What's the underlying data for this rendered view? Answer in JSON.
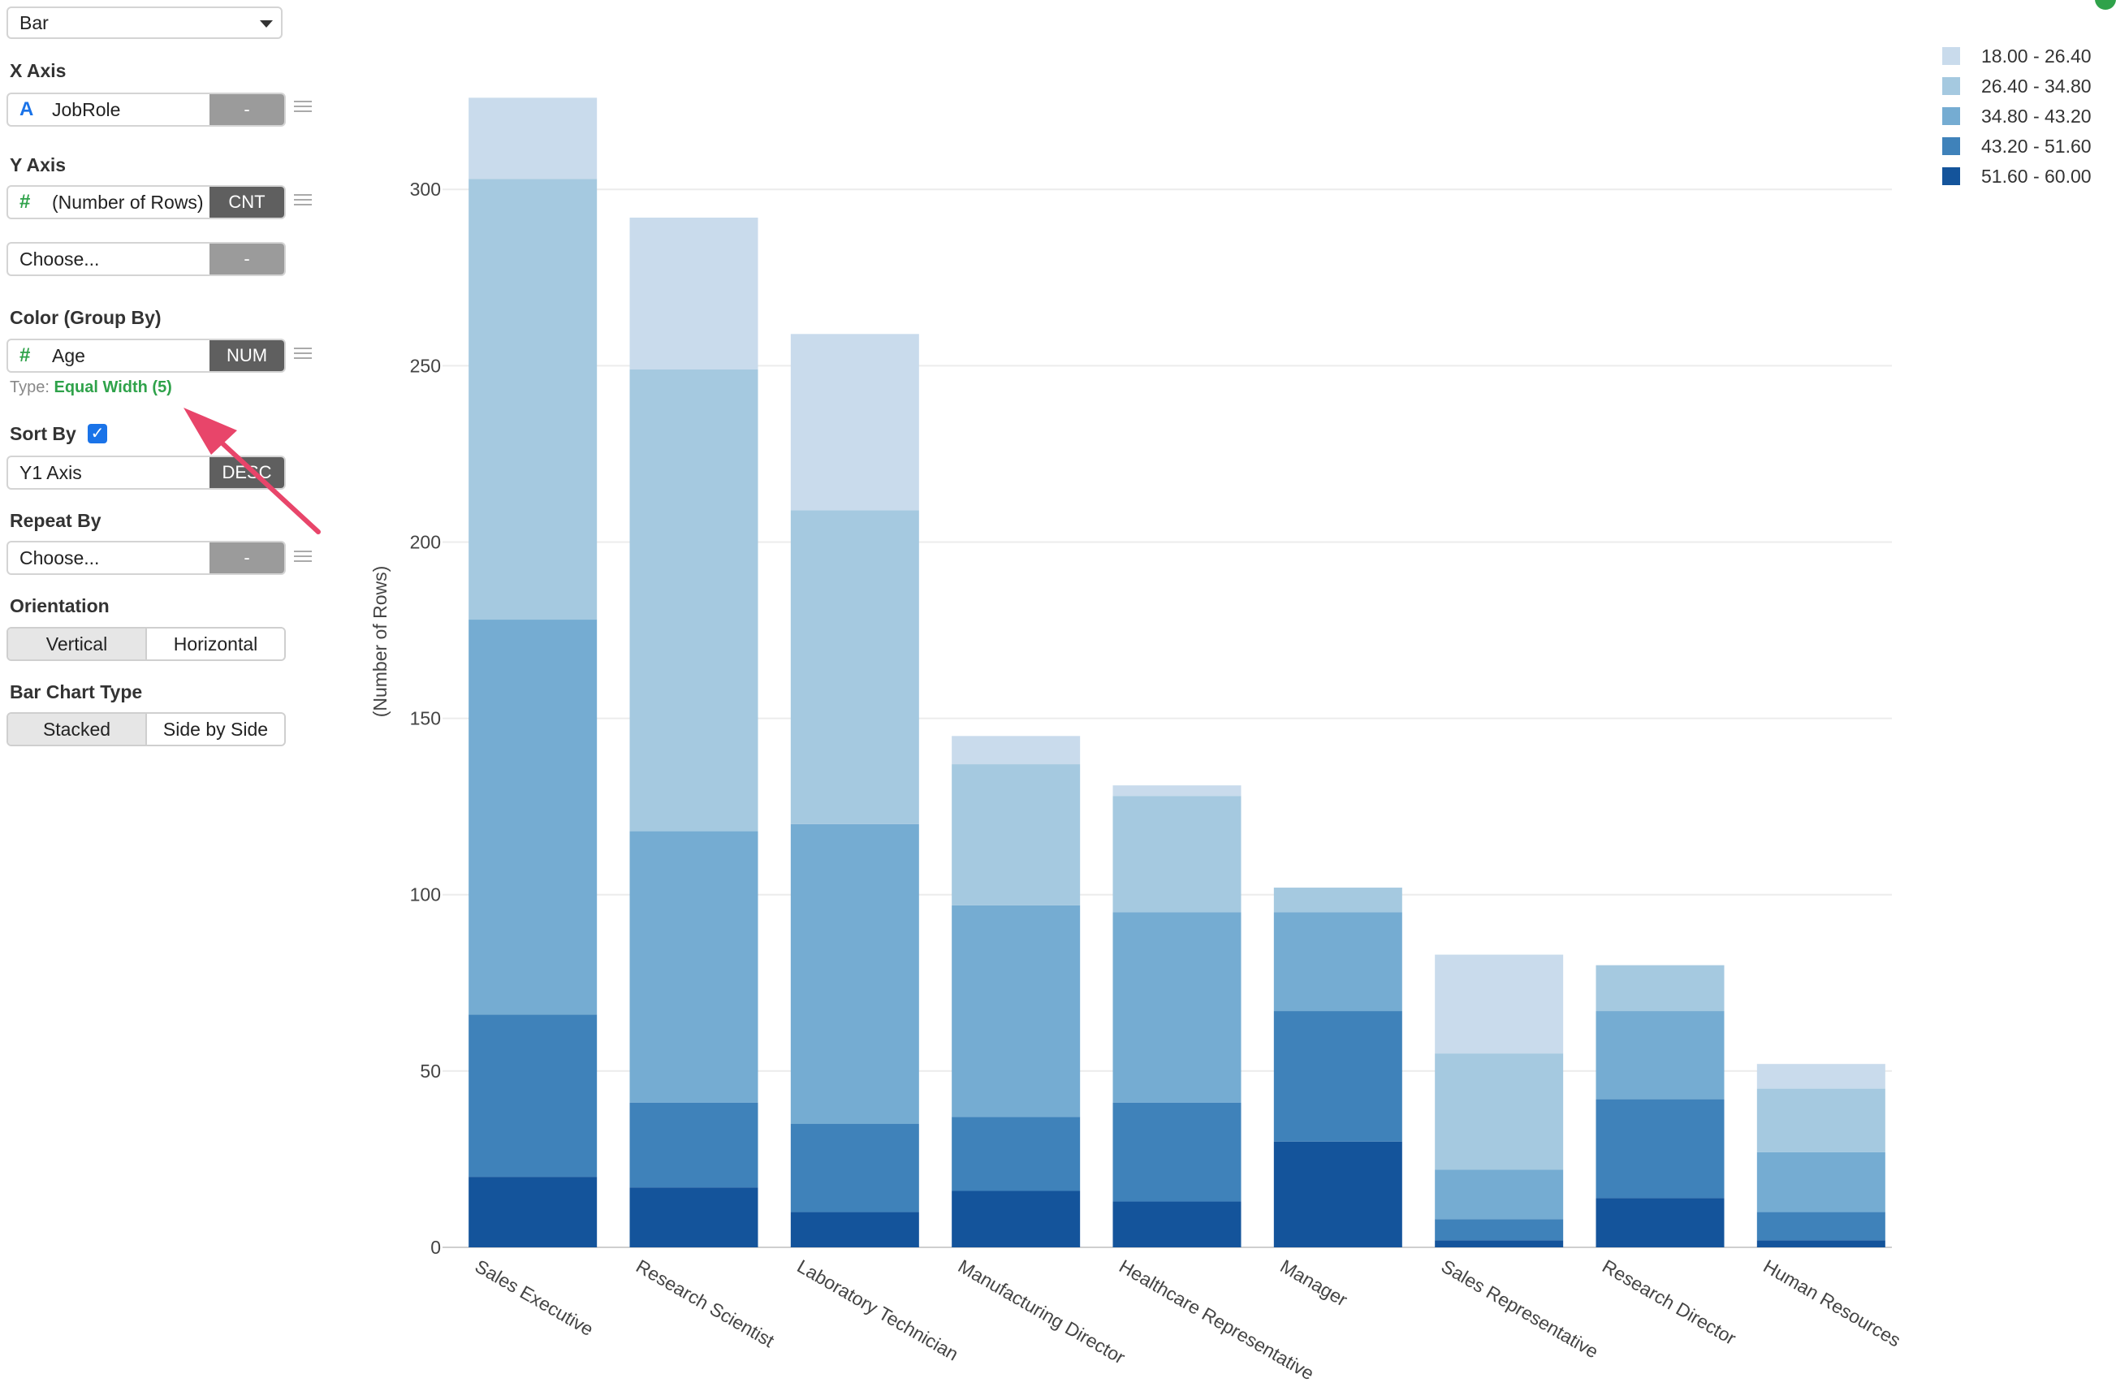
{
  "controls": {
    "chart_type": "Bar",
    "x_axis": {
      "label": "X Axis",
      "value": "JobRole",
      "icon": "text-type-icon",
      "button": "-"
    },
    "y_axis": {
      "label": "Y Axis",
      "value": "(Number of Rows)",
      "icon": "number-type-icon",
      "button": "CNT"
    },
    "y_axis2": {
      "value": "Choose...",
      "button": "-"
    },
    "color": {
      "label": "Color (Group By)",
      "value": "Age",
      "icon": "number-type-icon",
      "button": "NUM",
      "type_prefix": "Type:",
      "type_value": "Equal Width (5)"
    },
    "sort": {
      "label": "Sort By",
      "checked": true,
      "value": "Y1 Axis",
      "button": "DESC"
    },
    "repeat": {
      "label": "Repeat By",
      "value": "Choose...",
      "button": "-"
    },
    "orientation": {
      "label": "Orientation",
      "options": [
        "Vertical",
        "Horizontal"
      ],
      "selected": "Vertical"
    },
    "bar_type": {
      "label": "Bar Chart Type",
      "options": [
        "Stacked",
        "Side by Side"
      ],
      "selected": "Stacked"
    },
    "text_icon_color": "#1a73e8",
    "number_icon_color": "#2fa24a",
    "arrow_color": "#e8456a"
  },
  "chart_data": {
    "type": "bar",
    "stacked": true,
    "orientation": "vertical",
    "ylabel": "(Number of Rows)",
    "ylim": [
      0,
      327
    ],
    "yticks": [
      0,
      50,
      100,
      150,
      200,
      250,
      300
    ],
    "grid": true,
    "legend_position": "top-right",
    "categories": [
      "Sales Executive",
      "Research Scientist",
      "Laboratory Technician",
      "Manufacturing Director",
      "Healthcare Representative",
      "Manager",
      "Sales Representative",
      "Research Director",
      "Human Resources"
    ],
    "series": [
      {
        "name": "51.60 - 60.00",
        "color": "#14549b",
        "values": [
          20,
          17,
          10,
          16,
          13,
          30,
          2,
          14,
          2
        ]
      },
      {
        "name": "43.20 - 51.60",
        "color": "#3f82ba",
        "values": [
          46,
          24,
          25,
          21,
          28,
          37,
          6,
          28,
          8
        ]
      },
      {
        "name": "34.80 - 43.20",
        "color": "#75acd2",
        "values": [
          112,
          77,
          85,
          60,
          54,
          28,
          14,
          25,
          17
        ]
      },
      {
        "name": "26.40 - 34.80",
        "color": "#a5c9e0",
        "values": [
          125,
          131,
          89,
          40,
          33,
          7,
          33,
          13,
          18
        ]
      },
      {
        "name": "18.00 - 26.40",
        "color": "#c9dbec",
        "values": [
          23,
          43,
          50,
          8,
          3,
          0,
          28,
          0,
          7
        ]
      }
    ],
    "legend_order": [
      "18.00 - 26.40",
      "26.40 - 34.80",
      "34.80 - 43.20",
      "43.20 - 51.60",
      "51.60 - 60.00"
    ]
  }
}
